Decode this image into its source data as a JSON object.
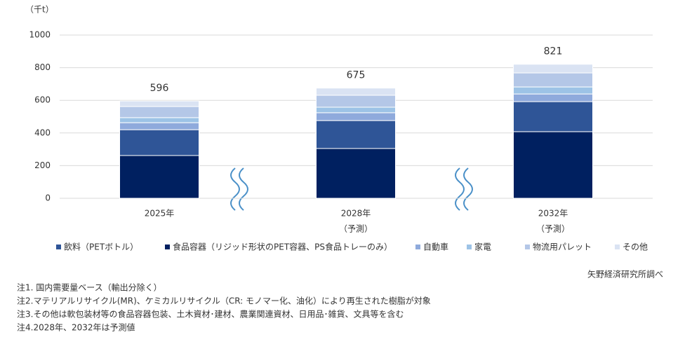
{
  "chart_data": {
    "type": "stacked_bar",
    "unit_label": "（千t）",
    "categories": [
      "2025年",
      "2028年",
      "2032年"
    ],
    "category_notes": [
      null,
      "（予測）",
      "（予測）"
    ],
    "series": [
      {
        "name": "飲料（PETボトル）",
        "color": "#2f5597",
        "values": [
          158,
          171,
          184
        ]
      },
      {
        "name": "食品容器（リジッド形状のPET容器、PS食品トレーのみ）",
        "color": "#002060",
        "values": [
          262,
          305,
          408
        ]
      },
      {
        "name": "自動車",
        "color": "#8faadc",
        "values": [
          43,
          48,
          47
        ]
      },
      {
        "name": "家電",
        "color": "#9dc3e6",
        "values": [
          31,
          34,
          43
        ]
      },
      {
        "name": "物流用パレット",
        "color": "#b4c7e7",
        "values": [
          68,
          73,
          86
        ]
      },
      {
        "name": "その他",
        "color": "#dae3f3",
        "values": [
          34,
          44,
          53
        ]
      }
    ],
    "totals": [
      596,
      675,
      821
    ],
    "ylim": [
      0,
      1000
    ],
    "yticks": [
      0,
      200,
      400,
      600,
      800,
      1000
    ],
    "grid": true,
    "source": "矢野経済研究所調べ",
    "notes": [
      "注1. 国内需要量ベース（輸出分除く）",
      "注2.マテリアルリサイクル(MR)、ケミカルリサイクル（CR: モノマー化、油化）により再生された樹脂が対象",
      "注3.その他は軟包装材等の食品容器包装、土木資材･建材、農業関連資材、日用品･雑貨、文具等を含む",
      "注4.2028年、2032年は予測値"
    ]
  }
}
